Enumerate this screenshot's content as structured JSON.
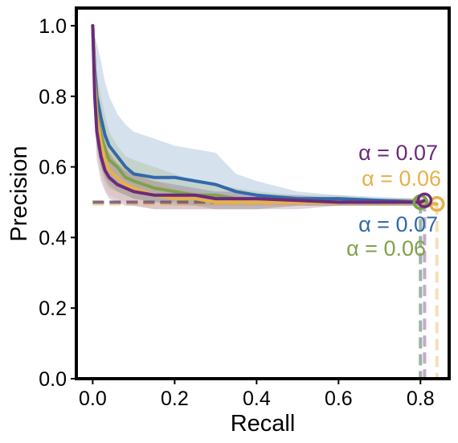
{
  "chart_data": {
    "type": "line",
    "title": "",
    "xlabel": "Recall",
    "ylabel": "Precision",
    "xlim": [
      -0.04,
      0.87
    ],
    "ylim": [
      0.0,
      1.05
    ],
    "xticks": [
      "0.0",
      "0.2",
      "0.4",
      "0.6",
      "0.8"
    ],
    "yticks": [
      "0.0",
      "0.2",
      "0.4",
      "0.6",
      "0.8",
      "1.0"
    ],
    "grid": false,
    "legend": "none",
    "series": [
      {
        "color": "#3369ab",
        "annotation": "α = 0.07",
        "endpoint": [
          0.8,
          0.5
        ],
        "baseline": 0.5,
        "x": [
          0.0,
          0.005,
          0.01,
          0.02,
          0.03,
          0.04,
          0.06,
          0.08,
          0.1,
          0.15,
          0.2,
          0.25,
          0.3,
          0.35,
          0.4,
          0.5,
          0.6,
          0.7,
          0.8
        ],
        "y": [
          1.0,
          0.88,
          0.8,
          0.74,
          0.69,
          0.66,
          0.63,
          0.6,
          0.58,
          0.57,
          0.57,
          0.56,
          0.55,
          0.53,
          0.52,
          0.51,
          0.51,
          0.505,
          0.5
        ],
        "band_upper": [
          1.0,
          0.97,
          0.95,
          0.9,
          0.84,
          0.8,
          0.75,
          0.72,
          0.7,
          0.68,
          0.66,
          0.65,
          0.64,
          0.58,
          0.56,
          0.53,
          0.52,
          0.515,
          0.51
        ],
        "band_lower": [
          1.0,
          0.76,
          0.66,
          0.6,
          0.57,
          0.55,
          0.53,
          0.52,
          0.51,
          0.5,
          0.5,
          0.49,
          0.48,
          0.48,
          0.48,
          0.49,
          0.49,
          0.49,
          0.49
        ]
      },
      {
        "color": "#7ea24a",
        "annotation": "α = 0.06",
        "endpoint": [
          0.8,
          0.5
        ],
        "baseline": 0.5,
        "x": [
          0.0,
          0.005,
          0.01,
          0.02,
          0.03,
          0.04,
          0.06,
          0.08,
          0.1,
          0.15,
          0.2,
          0.25,
          0.3,
          0.35,
          0.4,
          0.5,
          0.6,
          0.7,
          0.8
        ],
        "y": [
          1.0,
          0.85,
          0.76,
          0.69,
          0.65,
          0.62,
          0.6,
          0.57,
          0.56,
          0.54,
          0.53,
          0.52,
          0.52,
          0.51,
          0.51,
          0.505,
          0.5,
          0.5,
          0.5
        ],
        "band_upper": [
          1.0,
          0.93,
          0.86,
          0.8,
          0.75,
          0.7,
          0.66,
          0.63,
          0.62,
          0.6,
          0.58,
          0.56,
          0.55,
          0.54,
          0.53,
          0.52,
          0.52,
          0.51,
          0.51
        ],
        "band_lower": [
          1.0,
          0.76,
          0.66,
          0.6,
          0.56,
          0.54,
          0.53,
          0.52,
          0.51,
          0.5,
          0.49,
          0.49,
          0.49,
          0.49,
          0.49,
          0.49,
          0.49,
          0.49,
          0.49
        ]
      },
      {
        "color": "#e8b04a",
        "annotation": "α = 0.06",
        "endpoint": [
          0.84,
          0.495
        ],
        "baseline": 0.495,
        "x": [
          0.0,
          0.005,
          0.01,
          0.02,
          0.03,
          0.04,
          0.06,
          0.08,
          0.1,
          0.15,
          0.2,
          0.25,
          0.3,
          0.35,
          0.4,
          0.5,
          0.6,
          0.7,
          0.8,
          0.84
        ],
        "y": [
          1.0,
          0.84,
          0.74,
          0.67,
          0.62,
          0.59,
          0.57,
          0.55,
          0.54,
          0.52,
          0.51,
          0.51,
          0.5,
          0.5,
          0.5,
          0.5,
          0.5,
          0.5,
          0.5,
          0.495
        ],
        "band_upper": [
          1.0,
          0.92,
          0.84,
          0.76,
          0.71,
          0.67,
          0.63,
          0.6,
          0.58,
          0.56,
          0.54,
          0.53,
          0.52,
          0.52,
          0.51,
          0.51,
          0.51,
          0.51,
          0.51,
          0.505
        ],
        "band_lower": [
          1.0,
          0.76,
          0.64,
          0.58,
          0.54,
          0.52,
          0.51,
          0.5,
          0.49,
          0.48,
          0.48,
          0.48,
          0.48,
          0.48,
          0.48,
          0.49,
          0.49,
          0.49,
          0.49,
          0.485
        ]
      },
      {
        "color": "#6b2a7a",
        "annotation": "α = 0.07",
        "endpoint": [
          0.81,
          0.505
        ],
        "baseline": 0.5,
        "x": [
          0.0,
          0.005,
          0.01,
          0.02,
          0.03,
          0.04,
          0.06,
          0.08,
          0.1,
          0.15,
          0.2,
          0.25,
          0.3,
          0.35,
          0.4,
          0.5,
          0.6,
          0.7,
          0.8,
          0.81
        ],
        "y": [
          1.0,
          0.8,
          0.7,
          0.63,
          0.59,
          0.57,
          0.55,
          0.54,
          0.53,
          0.52,
          0.52,
          0.52,
          0.51,
          0.51,
          0.51,
          0.505,
          0.5,
          0.5,
          0.5,
          0.505
        ],
        "band_upper": [
          1.0,
          0.9,
          0.8,
          0.72,
          0.67,
          0.64,
          0.61,
          0.59,
          0.58,
          0.56,
          0.55,
          0.54,
          0.53,
          0.53,
          0.52,
          0.52,
          0.51,
          0.51,
          0.51,
          0.515
        ],
        "band_lower": [
          1.0,
          0.72,
          0.62,
          0.56,
          0.53,
          0.51,
          0.5,
          0.49,
          0.49,
          0.48,
          0.48,
          0.48,
          0.48,
          0.48,
          0.48,
          0.48,
          0.49,
          0.49,
          0.49,
          0.495
        ]
      }
    ]
  }
}
